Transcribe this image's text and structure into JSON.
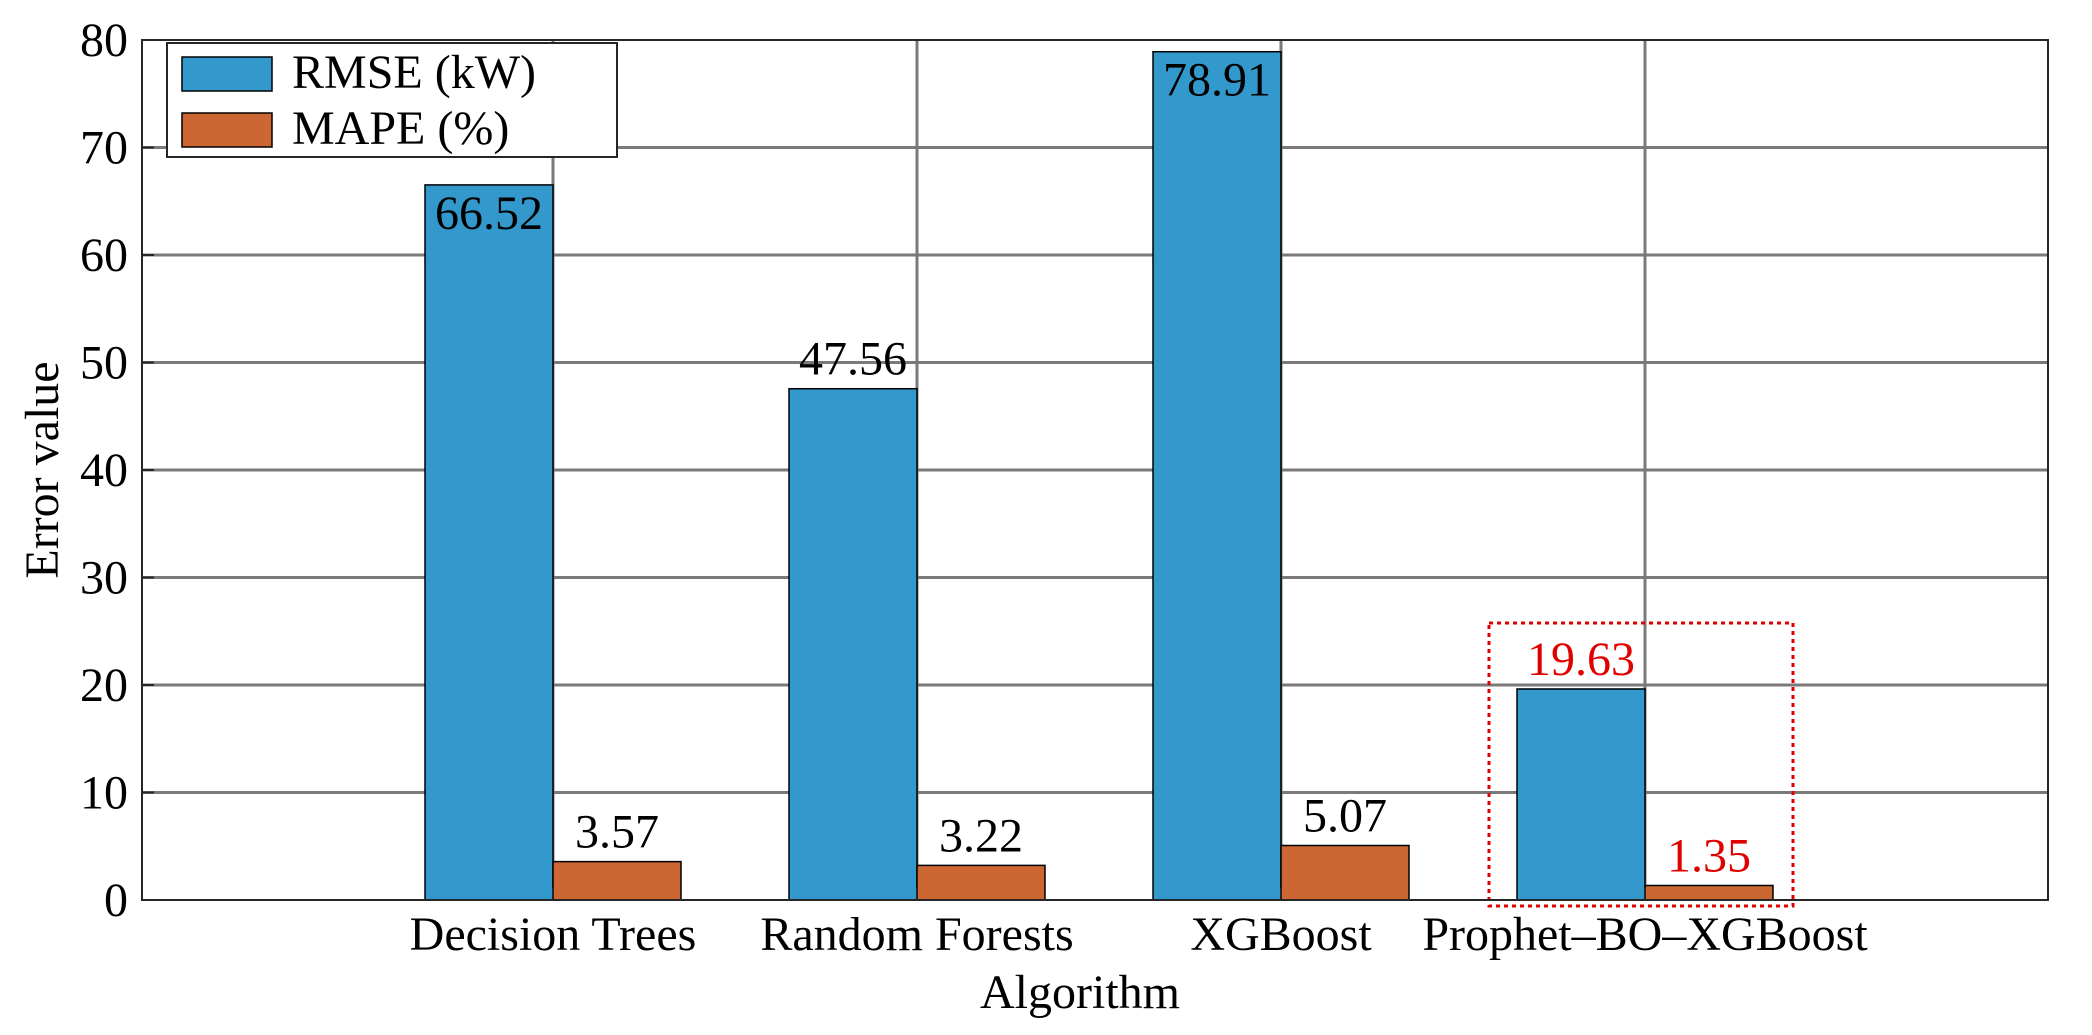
{
  "chart_data": {
    "type": "bar",
    "categories": [
      "Decision Trees",
      "Random Forests",
      "XGBoost",
      "Prophet–BO–XGBoost"
    ],
    "series": [
      {
        "name": "RMSE (kW)",
        "color": "#3399CC",
        "values": [
          66.52,
          47.56,
          78.91,
          19.63
        ]
      },
      {
        "name": "MAPE (%)",
        "color": "#CC6633",
        "values": [
          3.57,
          3.22,
          5.07,
          1.35
        ]
      }
    ],
    "data_labels": [
      [
        "66.52",
        "47.56",
        "78.91",
        "19.63"
      ],
      [
        "3.57",
        "3.22",
        "5.07",
        "1.35"
      ]
    ],
    "xlabel": "Algorithm",
    "ylabel": "Error value",
    "ylim": [
      0,
      80
    ],
    "yticks": [
      0,
      10,
      20,
      30,
      40,
      50,
      60,
      70,
      80
    ],
    "grid": true,
    "legend_position": "top-left",
    "highlight": {
      "category_index": 3,
      "color": "#E00000"
    }
  }
}
